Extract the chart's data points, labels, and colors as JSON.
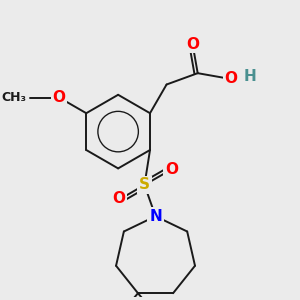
{
  "background_color": "#ebebeb",
  "bond_color": "#1a1a1a",
  "atom_colors": {
    "O": "#ff0000",
    "S": "#ccaa00",
    "N": "#0000ff",
    "H": "#4a9090",
    "C": "#1a1a1a"
  },
  "font_size_atom": 11,
  "font_size_small": 9,
  "lw": 1.4,
  "figure_size": [
    3.0,
    3.0
  ],
  "dpi": 100,
  "xlim": [
    -2.5,
    4.5
  ],
  "ylim": [
    -4.5,
    3.5
  ]
}
